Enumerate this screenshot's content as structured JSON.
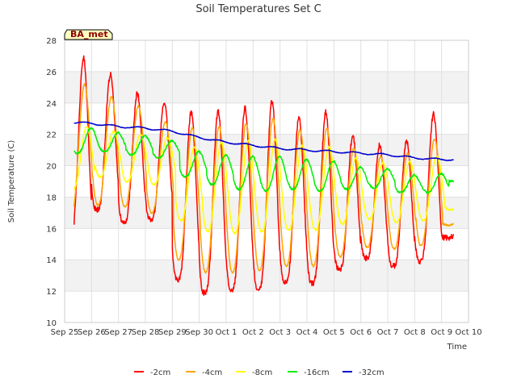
{
  "chart_data": {
    "type": "line",
    "title": "Soil Temperatures Set C",
    "xlabel": "Time",
    "ylabel": "Soil Temperature (C)",
    "station_badge": "BA_met",
    "ylim": [
      10,
      28
    ],
    "y_ticks": [
      "10",
      "12",
      "14",
      "16",
      "18",
      "20",
      "22",
      "24",
      "26",
      "28"
    ],
    "x_ticks": [
      "Sep 25",
      "Sep 26",
      "Sep 27",
      "Sep 28",
      "Sep 29",
      "Sep 30",
      "Oct 1",
      "Oct 2",
      "Oct 3",
      "Oct 4",
      "Oct 5",
      "Oct 6",
      "Oct 7",
      "Oct 8",
      "Oct 9",
      "Oct 10"
    ],
    "grid": true,
    "legend_position": "bottom-center",
    "x_dates": [
      "Sep 25",
      "Sep 26",
      "Sep 27",
      "Sep 28",
      "Sep 29",
      "Sep 30",
      "Oct 1",
      "Oct 2",
      "Oct 3",
      "Oct 4",
      "Oct 5",
      "Oct 6",
      "Oct 7",
      "Oct 8",
      "Oct 9"
    ],
    "series": [
      {
        "name": "-2cm",
        "color": "#ff0000",
        "daily_min": [
          15.5,
          17.2,
          16.4,
          16.6,
          12.7,
          11.9,
          12.1,
          12.1,
          12.6,
          12.5,
          13.4,
          14.1,
          13.6,
          13.9,
          15.4
        ],
        "daily_max": [
          26.9,
          25.8,
          24.6,
          24.0,
          23.4,
          23.5,
          23.7,
          24.1,
          23.1,
          23.4,
          21.9,
          21.3,
          21.6,
          23.3,
          16.0
        ]
      },
      {
        "name": "-4cm",
        "color": "#ffa500",
        "daily_min": [
          16.8,
          17.5,
          17.4,
          17.0,
          14.0,
          13.2,
          13.2,
          13.3,
          13.6,
          13.6,
          14.2,
          14.8,
          14.7,
          14.9,
          16.2
        ],
        "daily_max": [
          25.2,
          24.4,
          23.8,
          22.8,
          22.4,
          22.5,
          22.7,
          23.0,
          22.3,
          22.4,
          21.1,
          20.6,
          20.8,
          21.7,
          16.6
        ]
      },
      {
        "name": "-8cm",
        "color": "#ffff00",
        "daily_min": [
          18.5,
          19.3,
          19.0,
          18.8,
          16.5,
          15.8,
          15.7,
          15.8,
          15.9,
          15.9,
          16.3,
          16.6,
          16.4,
          16.5,
          17.2
        ],
        "daily_max": [
          22.5,
          22.2,
          22.0,
          21.8,
          21.2,
          21.5,
          21.6,
          21.7,
          21.3,
          21.2,
          20.5,
          20.2,
          20.3,
          20.6,
          17.7
        ]
      },
      {
        "name": "-16cm",
        "color": "#00ee00",
        "daily_min": [
          20.8,
          20.9,
          20.7,
          20.5,
          19.3,
          18.8,
          18.5,
          18.4,
          18.5,
          18.4,
          18.5,
          18.6,
          18.3,
          18.3,
          19.0
        ],
        "daily_max": [
          22.4,
          22.1,
          21.9,
          21.6,
          20.9,
          20.7,
          20.6,
          20.6,
          20.4,
          20.3,
          19.9,
          19.8,
          19.4,
          19.5,
          19.1
        ]
      },
      {
        "name": "-32cm",
        "color": "#0000cc",
        "daily_mean": [
          22.8,
          22.7,
          22.5,
          22.4,
          22.2,
          21.8,
          21.5,
          21.3,
          21.1,
          21.0,
          20.9,
          20.8,
          20.7,
          20.5,
          20.4
        ]
      }
    ]
  }
}
